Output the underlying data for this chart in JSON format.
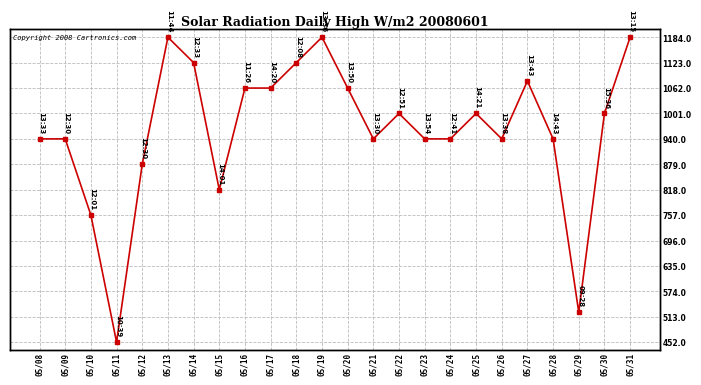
{
  "title": "Solar Radiation Daily High W/m2 20080601",
  "copyright": "Copyright 2008 Cartronics.com",
  "background_color": "#ffffff",
  "plot_background": "#ffffff",
  "grid_color": "#bbbbbb",
  "line_color": "#cc0000",
  "marker_color": "#cc0000",
  "dates": [
    "05/08",
    "05/09",
    "05/10",
    "05/11",
    "05/12",
    "05/13",
    "05/14",
    "05/15",
    "05/16",
    "05/17",
    "05/18",
    "05/19",
    "05/20",
    "05/21",
    "05/22",
    "05/23",
    "05/24",
    "05/25",
    "05/26",
    "05/27",
    "05/28",
    "05/29",
    "05/30",
    "05/31"
  ],
  "values": [
    940,
    940,
    757,
    452,
    879,
    1184,
    1123,
    818,
    1062,
    1062,
    1123,
    1184,
    1062,
    940,
    1001,
    940,
    940,
    1001,
    940,
    1079,
    940,
    524,
    1001,
    1184
  ],
  "time_labels": [
    "13:33",
    "12:30",
    "12:01",
    "10:39",
    "12:30",
    "11:44",
    "12:33",
    "14:01",
    "11:26",
    "14:20",
    "12:08",
    "13:36",
    "13:50",
    "13:30",
    "12:51",
    "13:54",
    "12:41",
    "14:21",
    "13:38",
    "13:43",
    "14:43",
    "09:28",
    "15:36",
    "13:15"
  ],
  "ylim_min": 432,
  "ylim_max": 1204,
  "yticks": [
    452.0,
    513.0,
    574.0,
    635.0,
    696.0,
    757.0,
    818.0,
    879.0,
    940.0,
    1001.0,
    1062.0,
    1123.0,
    1184.0
  ],
  "title_fontsize": 9,
  "tick_fontsize": 5.5,
  "label_fontsize": 5.0,
  "copyright_fontsize": 5.0
}
